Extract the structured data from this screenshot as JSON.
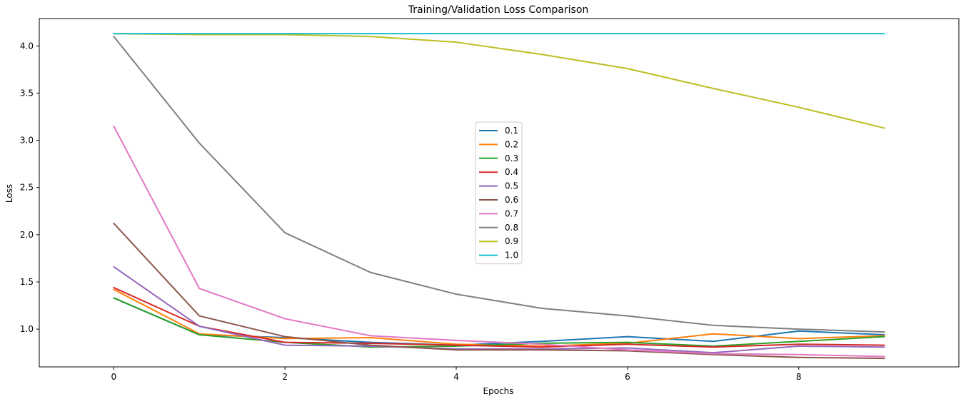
{
  "chart_data": {
    "type": "line",
    "title": "Training/Validation Loss Comparison",
    "xlabel": "Epochs",
    "ylabel": "Loss",
    "xlim": [
      -0.87,
      9.87
    ],
    "ylim": [
      0.6,
      4.29
    ],
    "x_ticks": [
      0,
      2,
      4,
      6,
      8
    ],
    "y_ticks": [
      1.0,
      1.5,
      2.0,
      2.5,
      3.0,
      3.5,
      4.0
    ],
    "x_tick_labels": [
      "0",
      "2",
      "4",
      "6",
      "8"
    ],
    "y_tick_labels": [
      "1.0",
      "1.5",
      "2.0",
      "2.5",
      "3.0",
      "3.5",
      "4.0"
    ],
    "grid": false,
    "legend_position": "center",
    "x": [
      0,
      1,
      2,
      3,
      4,
      5,
      6,
      7,
      8,
      9
    ],
    "series": [
      {
        "name": "0.1",
        "color": "#1f77b4",
        "values": [
          1.33,
          0.94,
          0.91,
          0.86,
          0.83,
          0.87,
          0.92,
          0.87,
          0.98,
          0.94
        ]
      },
      {
        "name": "0.2",
        "color": "#ff7f0e",
        "values": [
          1.42,
          0.95,
          0.9,
          0.91,
          0.84,
          0.82,
          0.85,
          0.95,
          0.9,
          0.93
        ]
      },
      {
        "name": "0.3",
        "color": "#2ca02c",
        "values": [
          1.33,
          0.94,
          0.86,
          0.81,
          0.82,
          0.85,
          0.86,
          0.82,
          0.87,
          0.92
        ]
      },
      {
        "name": "0.4",
        "color": "#d62728",
        "values": [
          1.44,
          1.03,
          0.86,
          0.85,
          0.83,
          0.81,
          0.84,
          0.81,
          0.84,
          0.83
        ]
      },
      {
        "name": "0.5",
        "color": "#9467bd",
        "values": [
          1.66,
          1.03,
          0.83,
          0.82,
          0.79,
          0.79,
          0.8,
          0.75,
          0.82,
          0.81
        ]
      },
      {
        "name": "0.6",
        "color": "#8c564b",
        "values": [
          2.12,
          1.14,
          0.92,
          0.83,
          0.78,
          0.78,
          0.77,
          0.73,
          0.7,
          0.69
        ]
      },
      {
        "name": "0.7",
        "color": "#e377c2",
        "values": [
          3.15,
          1.43,
          1.11,
          0.93,
          0.88,
          0.84,
          0.78,
          0.74,
          0.73,
          0.71
        ]
      },
      {
        "name": "0.8",
        "color": "#7f7f7f",
        "values": [
          4.1,
          2.97,
          2.02,
          1.6,
          1.37,
          1.22,
          1.14,
          1.04,
          1.0,
          0.97
        ]
      },
      {
        "name": "0.9",
        "color": "#bcbd22",
        "values": [
          4.13,
          4.12,
          4.12,
          4.1,
          4.04,
          3.91,
          3.76,
          3.55,
          3.35,
          3.13
        ]
      },
      {
        "name": "1.0",
        "color": "#17becf",
        "values": [
          4.13,
          4.13,
          4.13,
          4.13,
          4.13,
          4.13,
          4.13,
          4.13,
          4.13,
          4.13
        ]
      }
    ]
  }
}
